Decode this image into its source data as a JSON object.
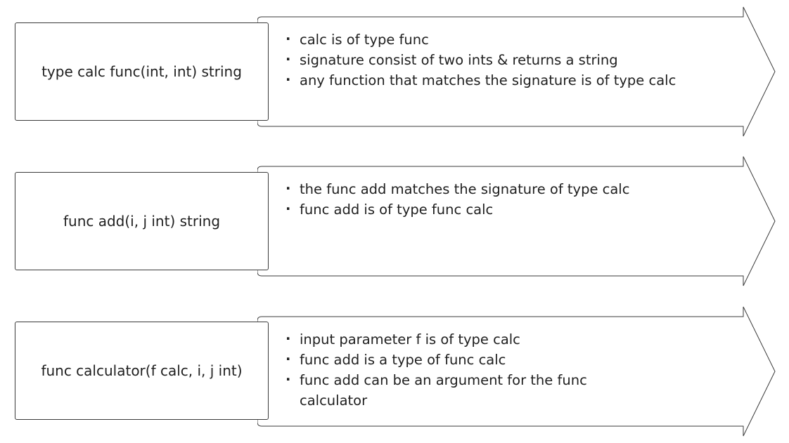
{
  "rows": [
    {
      "label": "type calc func(int, int) string",
      "bullets": [
        "calc is of type func",
        "signature consist of two ints & returns a string",
        "any function that matches the signature is of type calc"
      ]
    },
    {
      "label": "func add(i, j int) string",
      "bullets": [
        "the func add matches the signature of type calc",
        "func add is of type func calc"
      ]
    },
    {
      "label": "func calculator(f calc, i, j int)",
      "bullets": [
        "input parameter f is of type calc",
        "func add is a type of func calc",
        "func add can be an argument for the func calculator"
      ]
    }
  ]
}
